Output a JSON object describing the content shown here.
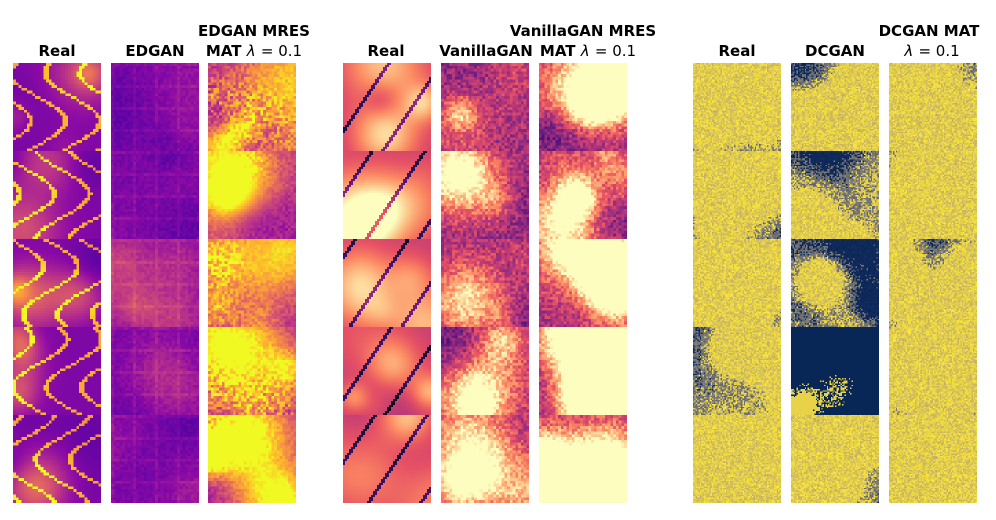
{
  "groups": [
    {
      "name": "edgan",
      "colormap": "plasma",
      "columns": [
        {
          "title_line1": "",
          "title_line2": "Real",
          "kind": "real-curvy"
        },
        {
          "title_line1": "",
          "title_line2": "EDGAN",
          "kind": "edgan-grid"
        },
        {
          "title_line1": "EDGAN MRES",
          "title_line2_prefix": "MAT",
          "title_line2_lambda": "λ",
          "title_line2_eq": "= 0.1",
          "kind": "edgan-mres"
        }
      ]
    },
    {
      "name": "vanillagan",
      "colormap": "magma",
      "columns": [
        {
          "title_line1": "",
          "title_line2": "Real",
          "kind": "real-smooth"
        },
        {
          "title_line1": "",
          "title_line2": "VanillaGAN",
          "kind": "vanilla-noisy"
        },
        {
          "title_line1": "VanillaGAN MRES",
          "title_line2_prefix": "MAT",
          "title_line2_lambda": "λ",
          "title_line2_eq": "= 0.1",
          "kind": "vanilla-mres"
        }
      ]
    },
    {
      "name": "dcgan",
      "colormap": "cividis",
      "columns": [
        {
          "title_line1": "",
          "title_line2": "Real",
          "kind": "dc-real"
        },
        {
          "title_line1": "",
          "title_line2": "DCGAN",
          "kind": "dc-gan"
        },
        {
          "title_line1": "DCGAN MAT",
          "title_line2_lambda": "λ",
          "title_line2_eq": "= 0.1",
          "kind": "dc-mat"
        }
      ]
    }
  ],
  "rows": 5,
  "colors": {
    "background": "#ffffff",
    "plasma_dark": "#2c0a8c",
    "plasma_bright": "#f9e02a",
    "magma_dark": "#000004",
    "magma_bright": "#fcfdbf",
    "cividis_dark": "#00224e",
    "cividis_bright": "#fee838"
  }
}
